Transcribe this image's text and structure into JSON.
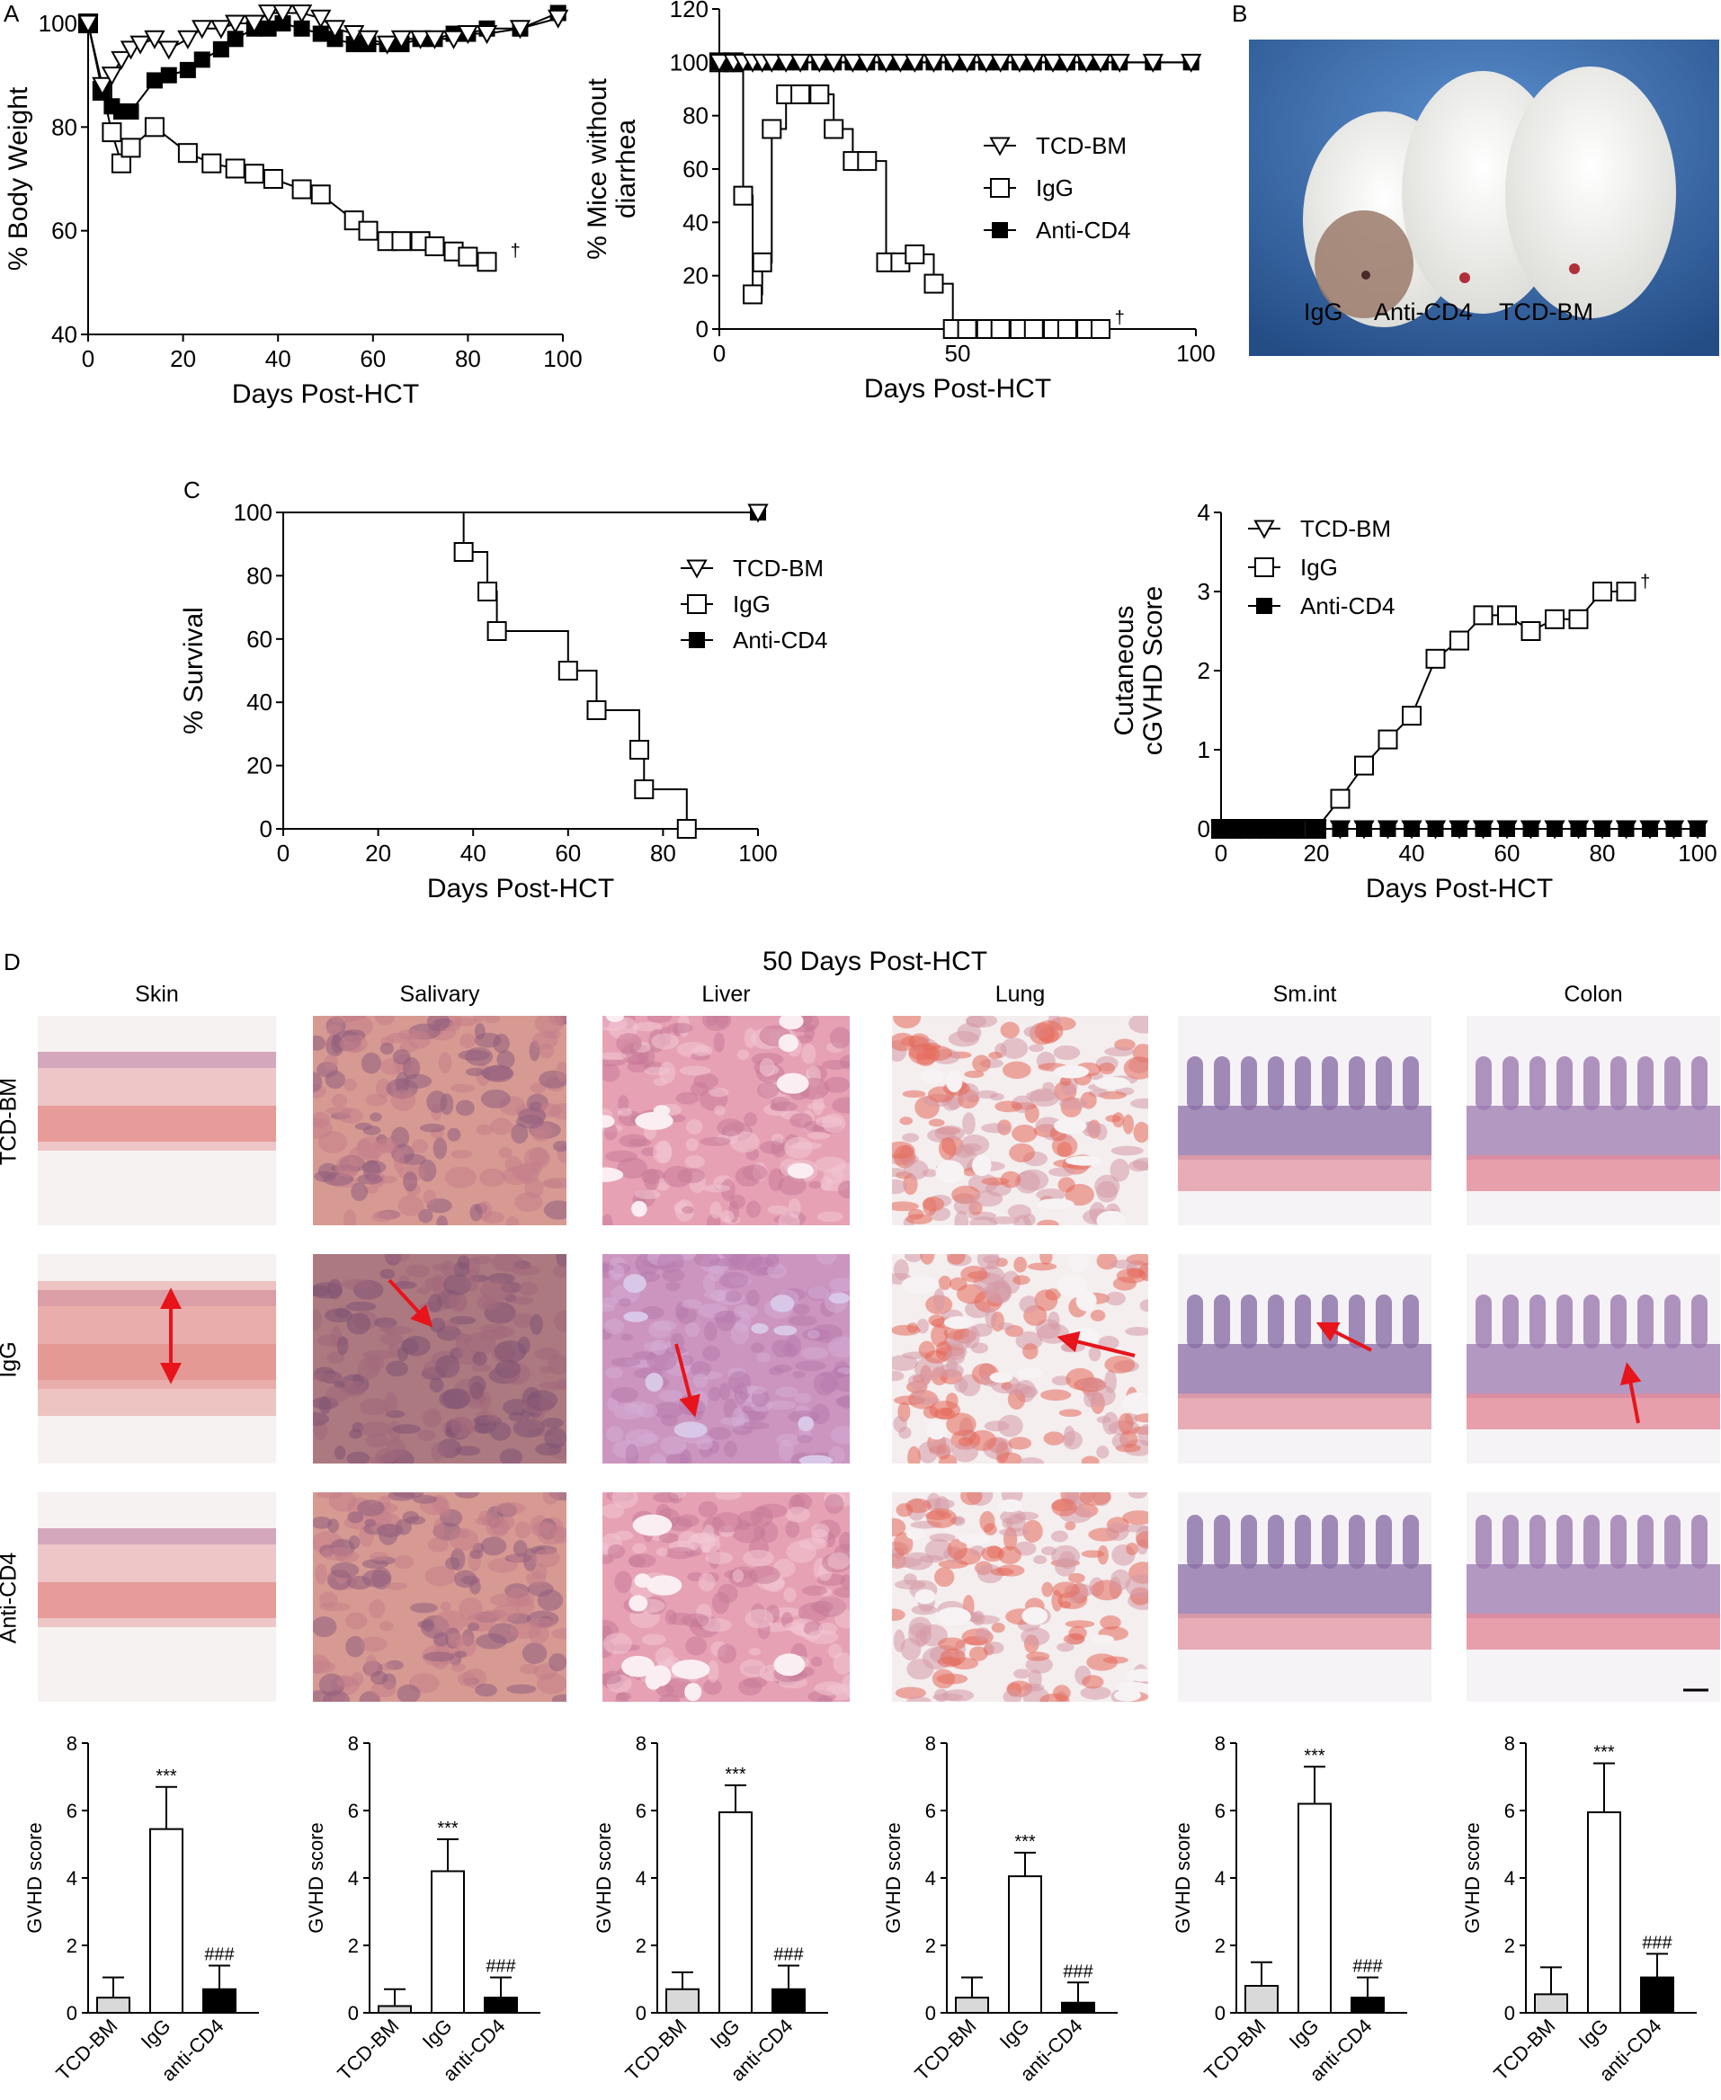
{
  "panel_letters": {
    "a": "A",
    "b": "B",
    "c": "C",
    "d": "D"
  },
  "colors": {
    "tcd": "#ffffff",
    "igg": "#ffffff",
    "cd4": "#000000",
    "tcd_bar": "#d9d9d9",
    "arrow": "#e8141b",
    "photo_bg": "#2f5f9e"
  },
  "photo": {
    "labels": [
      "IgG",
      "Anti-CD4",
      "TCD-BM"
    ]
  },
  "histology": {
    "title": "50 Days Post-HCT",
    "columns": [
      "Skin",
      "Salivary",
      "Liver",
      "Lung",
      "Sm.int",
      "Colon"
    ],
    "rows": [
      "TCD-BM",
      "IgG",
      "Anti-CD4"
    ]
  },
  "chart_data": [
    {
      "id": "weight",
      "type": "line",
      "xlabel": "Days Post-HCT",
      "ylabel": "% Body Weight",
      "xlim": [
        0,
        100
      ],
      "ylim": [
        40,
        100
      ],
      "xticks": [
        0,
        20,
        40,
        60,
        80,
        100
      ],
      "yticks": [
        40,
        60,
        80,
        100
      ],
      "dagger": "†",
      "series": [
        {
          "name": "TCD-BM",
          "marker": "triangle-down",
          "x": [
            0,
            3,
            5,
            7,
            9,
            11,
            14,
            17,
            21,
            24,
            28,
            31,
            35,
            38,
            41,
            45,
            49,
            52,
            56,
            59,
            63,
            66,
            70,
            73,
            77,
            80,
            84,
            91,
            99
          ],
          "y": [
            100,
            88,
            90,
            93,
            95,
            96,
            97,
            95,
            97,
            99,
            99,
            100,
            100,
            102,
            102,
            102,
            101,
            99,
            98,
            97,
            96,
            97,
            97,
            97,
            97,
            98,
            98,
            99,
            101
          ]
        },
        {
          "name": "IgG",
          "marker": "square-open",
          "x": [
            0,
            3,
            5,
            7,
            9,
            14,
            21,
            26,
            31,
            35,
            39,
            45,
            49,
            56,
            59,
            63,
            66,
            70,
            73,
            77,
            80,
            84
          ],
          "y": [
            100,
            87,
            79,
            73,
            76,
            80,
            75,
            73,
            72,
            71,
            70,
            68,
            67,
            62,
            60,
            58,
            58,
            58,
            57,
            56,
            55,
            54
          ]
        },
        {
          "name": "Anti-CD4",
          "marker": "square-filled",
          "x": [
            0,
            3,
            5,
            7,
            9,
            14,
            17,
            21,
            24,
            28,
            31,
            35,
            38,
            41,
            45,
            49,
            52,
            56,
            59,
            63,
            66,
            70,
            73,
            77,
            80,
            84,
            91,
            99
          ],
          "y": [
            100,
            87,
            84,
            83,
            83,
            89,
            90,
            91,
            93,
            95,
            97,
            99,
            99,
            100,
            99,
            98,
            97,
            96,
            96,
            96,
            96,
            97,
            97,
            98,
            98,
            99,
            99,
            102
          ]
        }
      ]
    },
    {
      "id": "diarrhea",
      "type": "line",
      "xlabel": "Days Post-HCT",
      "ylabel": "% Mice without diarrhea",
      "xlim": [
        0,
        100
      ],
      "ylim": [
        0,
        120
      ],
      "xticks": [
        0,
        50,
        100
      ],
      "yticks": [
        0,
        20,
        40,
        60,
        80,
        100,
        120
      ],
      "dagger": "†",
      "series": [
        {
          "name": "TCD-BM",
          "marker": "triangle-down",
          "step": false,
          "x": [
            0,
            3,
            5,
            7,
            9,
            11,
            14,
            17,
            21,
            24,
            28,
            31,
            35,
            38,
            41,
            45,
            49,
            52,
            56,
            59,
            63,
            66,
            70,
            73,
            77,
            80,
            84,
            91,
            99
          ],
          "y": [
            100,
            100,
            100,
            100,
            100,
            100,
            100,
            100,
            100,
            100,
            100,
            100,
            100,
            100,
            100,
            100,
            100,
            100,
            100,
            100,
            100,
            100,
            100,
            100,
            100,
            100,
            100,
            100,
            100
          ]
        },
        {
          "name": "IgG",
          "marker": "square-open",
          "step": true,
          "x": [
            0,
            3,
            5,
            7,
            9,
            11,
            14,
            17,
            21,
            24,
            28,
            31,
            35,
            38,
            41,
            45,
            49,
            52,
            56,
            59,
            63,
            66,
            70,
            73,
            77,
            80
          ],
          "y": [
            100,
            100,
            50,
            13,
            25,
            75,
            88,
            88,
            88,
            75,
            63,
            63,
            25,
            25,
            28,
            17,
            0,
            0,
            0,
            0,
            0,
            0,
            0,
            0,
            0,
            0
          ]
        },
        {
          "name": "Anti-CD4",
          "marker": "square-filled",
          "step": false,
          "x": [
            0,
            3,
            5,
            7,
            9,
            11,
            14,
            17,
            21,
            24,
            28,
            31,
            35,
            38,
            41,
            45,
            49,
            52,
            56,
            59,
            63,
            66,
            70,
            73,
            77,
            80,
            84,
            91,
            99
          ],
          "y": [
            100,
            100,
            100,
            100,
            100,
            100,
            100,
            100,
            100,
            100,
            100,
            100,
            100,
            100,
            100,
            100,
            100,
            100,
            100,
            100,
            100,
            100,
            100,
            100,
            100,
            100,
            100,
            100,
            100
          ]
        }
      ]
    },
    {
      "id": "survival",
      "type": "line",
      "xlabel": "Days Post-HCT",
      "ylabel": "% Survival",
      "xlim": [
        0,
        100
      ],
      "ylim": [
        0,
        100
      ],
      "xticks": [
        0,
        20,
        40,
        60,
        80,
        100
      ],
      "yticks": [
        0,
        20,
        40,
        60,
        80,
        100
      ],
      "series": [
        {
          "name": "TCD-BM",
          "marker": "triangle-down",
          "step": true,
          "x": [
            0,
            100
          ],
          "y": [
            100,
            100
          ]
        },
        {
          "name": "IgG",
          "marker": "square-open",
          "step": true,
          "x": [
            0,
            38,
            43,
            45,
            60,
            66,
            75,
            76,
            85
          ],
          "y": [
            100,
            87.5,
            75,
            62.5,
            50,
            37.5,
            25,
            12.5,
            0
          ]
        },
        {
          "name": "Anti-CD4",
          "marker": "square-filled",
          "step": true,
          "x": [
            0,
            100
          ],
          "y": [
            100,
            100
          ]
        }
      ]
    },
    {
      "id": "cgvhd",
      "type": "line",
      "xlabel": "Days Post-HCT",
      "ylabel": "Cutaneous cGVHD Score",
      "xlim": [
        0,
        100
      ],
      "ylim": [
        0,
        4
      ],
      "xticks": [
        0,
        20,
        40,
        60,
        80,
        100
      ],
      "yticks": [
        0,
        1,
        2,
        3,
        4
      ],
      "dagger": "†",
      "series": [
        {
          "name": "TCD-BM",
          "marker": "triangle-down",
          "x": [
            0,
            2,
            4,
            6,
            8,
            10,
            12,
            14,
            16,
            20,
            25,
            30,
            35,
            40,
            45,
            50,
            55,
            60,
            65,
            70,
            75,
            80,
            85,
            90,
            95,
            100
          ],
          "y": [
            0,
            0,
            0,
            0,
            0,
            0,
            0,
            0,
            0,
            0,
            0,
            0,
            0,
            0,
            0,
            0,
            0,
            0,
            0,
            0,
            0,
            0,
            0,
            0,
            0,
            0
          ]
        },
        {
          "name": "IgG",
          "marker": "square-open",
          "x": [
            0,
            2,
            4,
            6,
            8,
            10,
            12,
            14,
            16,
            20,
            25,
            30,
            35,
            40,
            45,
            50,
            55,
            60,
            65,
            70,
            75,
            80,
            85
          ],
          "y": [
            0,
            0,
            0,
            0,
            0,
            0,
            0,
            0,
            0,
            0,
            0.38,
            0.8,
            1.13,
            1.43,
            2.15,
            2.38,
            2.7,
            2.7,
            2.5,
            2.65,
            2.65,
            3.0,
            3.0
          ]
        },
        {
          "name": "Anti-CD4",
          "marker": "square-filled",
          "x": [
            0,
            2,
            4,
            6,
            8,
            10,
            12,
            14,
            16,
            20,
            25,
            30,
            35,
            40,
            45,
            50,
            55,
            60,
            65,
            70,
            75,
            80,
            85,
            90,
            95,
            100
          ],
          "y": [
            0,
            0,
            0,
            0,
            0,
            0,
            0,
            0,
            0,
            0,
            0,
            0,
            0,
            0,
            0,
            0,
            0,
            0,
            0,
            0,
            0,
            0,
            0,
            0,
            0,
            0
          ]
        }
      ]
    },
    {
      "id": "bar_skin",
      "type": "bar",
      "ylabel": "GVHD score",
      "ylim": [
        0,
        8
      ],
      "yticks": [
        0,
        2,
        4,
        6,
        8
      ],
      "categories": [
        "TCD-BM",
        "IgG",
        "anti-CD4"
      ],
      "values": [
        0.45,
        5.45,
        0.7
      ],
      "errors": [
        0.6,
        1.25,
        0.7
      ],
      "annotations": [
        "",
        "***",
        "###"
      ]
    },
    {
      "id": "bar_salivary",
      "type": "bar",
      "ylabel": "GVHD score",
      "ylim": [
        0,
        8
      ],
      "yticks": [
        0,
        2,
        4,
        6,
        8
      ],
      "categories": [
        "TCD-BM",
        "IgG",
        "anti-CD4"
      ],
      "values": [
        0.2,
        4.2,
        0.45
      ],
      "errors": [
        0.5,
        0.95,
        0.6
      ],
      "annotations": [
        "",
        "***",
        "###"
      ]
    },
    {
      "id": "bar_liver",
      "type": "bar",
      "ylabel": "GVHD score",
      "ylim": [
        0,
        8
      ],
      "yticks": [
        0,
        2,
        4,
        6,
        8
      ],
      "categories": [
        "TCD-BM",
        "IgG",
        "anti-CD4"
      ],
      "values": [
        0.7,
        5.95,
        0.7
      ],
      "errors": [
        0.5,
        0.8,
        0.7
      ],
      "annotations": [
        "",
        "***",
        "###"
      ]
    },
    {
      "id": "bar_lung",
      "type": "bar",
      "ylabel": "GVHD score",
      "ylim": [
        0,
        8
      ],
      "yticks": [
        0,
        2,
        4,
        6,
        8
      ],
      "categories": [
        "TCD-BM",
        "IgG",
        "anti-CD4"
      ],
      "values": [
        0.45,
        4.05,
        0.3
      ],
      "errors": [
        0.6,
        0.7,
        0.6
      ],
      "annotations": [
        "",
        "***",
        "###"
      ]
    },
    {
      "id": "bar_smint",
      "type": "bar",
      "ylabel": "GVHD score",
      "ylim": [
        0,
        8
      ],
      "yticks": [
        0,
        2,
        4,
        6,
        8
      ],
      "categories": [
        "TCD-BM",
        "IgG",
        "anti-CD4"
      ],
      "values": [
        0.8,
        6.2,
        0.45
      ],
      "errors": [
        0.7,
        1.1,
        0.6
      ],
      "annotations": [
        "",
        "***",
        "###"
      ]
    },
    {
      "id": "bar_colon",
      "type": "bar",
      "ylabel": "GVHD score",
      "ylim": [
        0,
        8
      ],
      "yticks": [
        0,
        2,
        4,
        6,
        8
      ],
      "categories": [
        "TCD-BM",
        "IgG",
        "anti-CD4"
      ],
      "values": [
        0.55,
        5.95,
        1.05
      ],
      "errors": [
        0.8,
        1.45,
        0.7
      ],
      "annotations": [
        "",
        "***",
        "###"
      ]
    }
  ]
}
